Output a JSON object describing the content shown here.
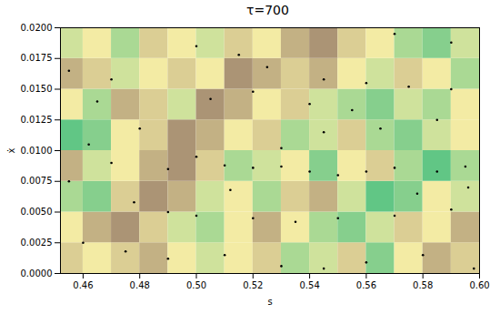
{
  "chart_data": {
    "type": "scatter",
    "title": "τ=700",
    "x_label": "s",
    "y_label": "ẋ",
    "xlim": [
      0.452,
      0.6
    ],
    "ylim": [
      0,
      0.02
    ],
    "xticks": [
      0.46,
      0.48,
      {
        "value": 0.5,
        "label": "0.50"
      },
      0.52,
      0.54,
      0.56,
      0.58,
      {
        "value": 0.6,
        "label": "0.60"
      }
    ],
    "yticks": [
      {
        "value": 0,
        "label": "0.0000"
      },
      {
        "value": 0.0025,
        "label": "0.0025"
      },
      {
        "value": 0.005,
        "label": "0.0050"
      },
      {
        "value": 0.0075,
        "label": "0.0075"
      },
      {
        "value": 0.01,
        "label": "0.0100"
      },
      {
        "value": 0.0125,
        "label": "0.0125"
      },
      {
        "value": 0.015,
        "label": "0.0150"
      },
      {
        "value": 0.0175,
        "label": "0.0175"
      },
      {
        "value": 0.02,
        "label": "0.0200"
      }
    ],
    "color": "#000000",
    "marker": "dot",
    "x": [
      0.47,
      0.455,
      0.465,
      0.48,
      0.462,
      0.47,
      0.455,
      0.49,
      0.5,
      0.51,
      0.52,
      0.53,
      0.54,
      0.55,
      0.56,
      0.57,
      0.585,
      0.595,
      0.478,
      0.49,
      0.5,
      0.52,
      0.535,
      0.55,
      0.57,
      0.59,
      0.46,
      0.475,
      0.49,
      0.51,
      0.53,
      0.545,
      0.56,
      0.58,
      0.598,
      0.5,
      0.515,
      0.525,
      0.545,
      0.56,
      0.575,
      0.59,
      0.585,
      0.565,
      0.555,
      0.54,
      0.52,
      0.505,
      0.57,
      0.59,
      0.545,
      0.53,
      0.578,
      0.596,
      0.512
    ],
    "values": [
      0.0158,
      0.0165,
      0.014,
      0.0118,
      0.0105,
      0.009,
      0.0075,
      0.0085,
      0.0095,
      0.0088,
      0.0086,
      0.0087,
      0.0083,
      0.008,
      0.0083,
      0.0086,
      0.0083,
      0.0087,
      0.0058,
      0.005,
      0.0047,
      0.0045,
      0.0042,
      0.0045,
      0.0047,
      0.0052,
      0.0025,
      0.0018,
      0.0012,
      0.0015,
      0.0006,
      0.0004,
      0.0009,
      0.0015,
      0.0004,
      0.0185,
      0.0178,
      0.0168,
      0.0158,
      0.0155,
      0.0152,
      0.015,
      0.0125,
      0.0118,
      0.0133,
      0.0138,
      0.0148,
      0.0142,
      0.0195,
      0.0188,
      0.0115,
      0.0102,
      0.0065,
      0.007,
      0.0068
    ],
    "cells": {
      "x_edges": [
        0.452,
        0.46,
        0.47,
        0.48,
        0.49,
        0.5,
        0.51,
        0.52,
        0.53,
        0.54,
        0.55,
        0.56,
        0.57,
        0.58,
        0.59,
        0.6
      ],
      "y_edges": [
        0,
        0.0025,
        0.005,
        0.0075,
        0.01,
        0.0125,
        0.015,
        0.0175,
        0.02
      ],
      "values": [
        [
          0.6,
          0.5,
          0.6,
          0.7,
          0.5,
          0.4,
          0.5,
          0.6,
          0.3,
          0.4,
          0.6,
          0.2,
          0.5,
          0.7,
          0.6
        ],
        [
          0.5,
          0.7,
          0.8,
          0.6,
          0.4,
          0.3,
          0.5,
          0.7,
          0.5,
          0.3,
          0.2,
          0.4,
          0.6,
          0.5,
          0.7
        ],
        [
          0.3,
          0.2,
          0.6,
          0.8,
          0.7,
          0.4,
          0.5,
          0.3,
          0.6,
          0.7,
          0.4,
          0.1,
          0.2,
          0.5,
          0.4
        ],
        [
          0.7,
          0.4,
          0.5,
          0.7,
          0.8,
          0.6,
          0.3,
          0.4,
          0.5,
          0.2,
          0.5,
          0.6,
          0.3,
          0.1,
          0.3
        ],
        [
          0.1,
          0.2,
          0.5,
          0.6,
          0.8,
          0.7,
          0.5,
          0.6,
          0.3,
          0.4,
          0.6,
          0.3,
          0.2,
          0.4,
          0.5
        ],
        [
          0.5,
          0.3,
          0.7,
          0.6,
          0.4,
          0.8,
          0.7,
          0.5,
          0.6,
          0.4,
          0.3,
          0.2,
          0.4,
          0.3,
          0.5
        ],
        [
          0.7,
          0.6,
          0.4,
          0.5,
          0.6,
          0.5,
          0.8,
          0.7,
          0.6,
          0.7,
          0.5,
          0.4,
          0.6,
          0.5,
          0.3
        ],
        [
          0.4,
          0.5,
          0.3,
          0.6,
          0.5,
          0.4,
          0.6,
          0.5,
          0.7,
          0.8,
          0.6,
          0.5,
          0.3,
          0.2,
          0.4
        ]
      ]
    },
    "color_range": [
      0,
      1
    ]
  }
}
